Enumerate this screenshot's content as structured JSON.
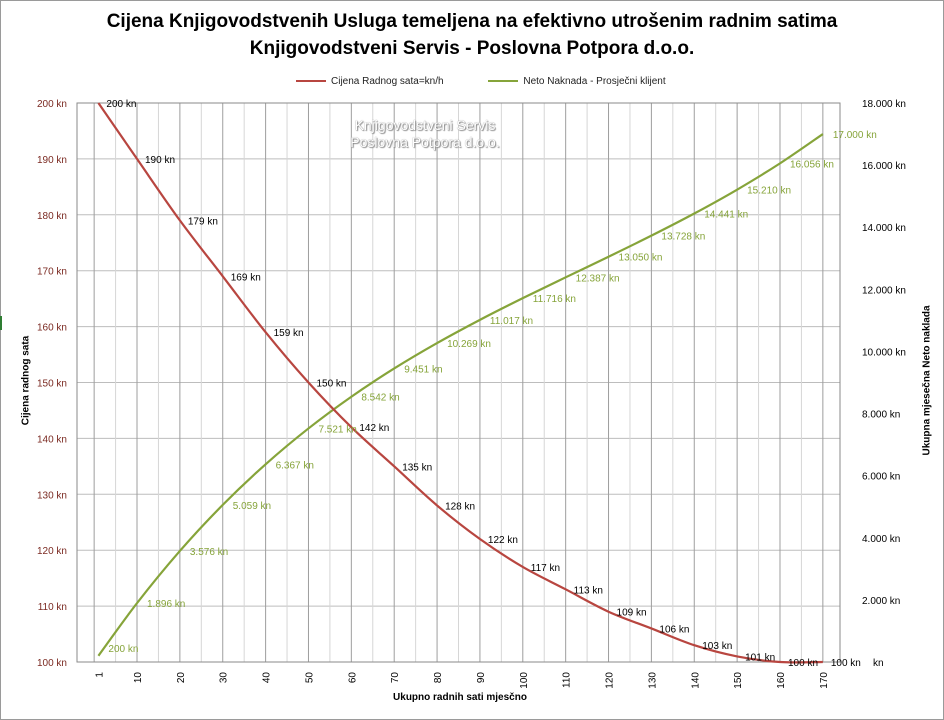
{
  "title_line1": "Cijena Knjigovodstvenih Usluga temeljena na efektivno utrošenim radnim satima",
  "title_line2": "Knjigovodstveni Servis - Poslovna Potpora d.o.o.",
  "watermark_line1": "Knjigovodstveni Servis",
  "watermark_line2": "Poslovna Potpora d.o.o.",
  "colors": {
    "price": "#b84640",
    "net": "#86a43a",
    "left_axis_text": "#7b2a22",
    "grid": "#bdbdbd"
  },
  "chart_data": {
    "type": "line",
    "xlabel": "Ukupno radnih sati mjesčno",
    "ylabel_left": "Cijena radnog sata",
    "ylabel_right": "Ukupna mjesečna Neto naklada",
    "ylim_left": [
      100,
      200
    ],
    "ylim_right": [
      0,
      18000
    ],
    "xlim": [
      -4,
      174
    ],
    "x_ticks": [
      1,
      10,
      20,
      30,
      40,
      50,
      60,
      70,
      80,
      90,
      100,
      110,
      120,
      130,
      140,
      150,
      160,
      170
    ],
    "x_tick_labels": [
      "1",
      "10",
      "20",
      "30",
      "40",
      "50",
      "60",
      "70",
      "80",
      "90",
      "100",
      "110",
      "120",
      "130",
      "140",
      "150",
      "160",
      "170"
    ],
    "y_left_ticks": [
      100,
      110,
      120,
      130,
      140,
      150,
      160,
      170,
      180,
      190,
      200
    ],
    "y_left_tick_labels": [
      "100 kn",
      "110 kn",
      "120 kn",
      "130 kn",
      "140 kn",
      "150 kn",
      "160 kn",
      "170 kn",
      "180 kn",
      "190 kn",
      "200 kn"
    ],
    "y_right_ticks": [
      0,
      2000,
      4000,
      6000,
      8000,
      10000,
      12000,
      14000,
      16000,
      18000
    ],
    "y_right_tick_labels": [
      "kn",
      "2.000 kn",
      "4.000 kn",
      "6.000 kn",
      "8.000 kn",
      "10.000 kn",
      "12.000 kn",
      "14.000 kn",
      "16.000 kn",
      "18.000 kn"
    ],
    "series": [
      {
        "name": "Cijena Radnog sata=kn/h",
        "axis": "left",
        "x": [
          1,
          10,
          20,
          30,
          40,
          50,
          60,
          70,
          80,
          90,
          100,
          110,
          120,
          130,
          140,
          150,
          160,
          170
        ],
        "values": [
          200,
          190,
          179,
          169,
          159,
          150,
          142,
          135,
          128,
          122,
          117,
          113,
          109,
          106,
          103,
          101,
          100,
          100
        ],
        "labels": [
          "200 kn",
          "190 kn",
          "179 kn",
          "169 kn",
          "159 kn",
          "150 kn",
          "142 kn",
          "135 kn",
          "128 kn",
          "122 kn",
          "117 kn",
          "113 kn",
          "109 kn",
          "106 kn",
          "103 kn",
          "101 kn",
          "100 kn",
          "100 kn"
        ]
      },
      {
        "name": "Neto Naknada - Prosječni klijent",
        "axis": "right",
        "x": [
          1,
          10,
          20,
          30,
          40,
          50,
          60,
          70,
          80,
          90,
          100,
          110,
          120,
          130,
          140,
          150,
          160,
          170
        ],
        "values": [
          200,
          1896,
          3576,
          5059,
          6367,
          7521,
          8542,
          9451,
          10269,
          11017,
          11716,
          12387,
          13050,
          13728,
          14441,
          15210,
          16056,
          17000
        ],
        "labels": [
          "200 kn",
          "1.896 kn",
          "3.576 kn",
          "5.059 kn",
          "6.367 kn",
          "7.521 kn",
          "8.542 kn",
          "9.451 kn",
          "10.269 kn",
          "11.017 kn",
          "11.716 kn",
          "12.387 kn",
          "13.050 kn",
          "13.728 kn",
          "14.441 kn",
          "15.210 kn",
          "16.056 kn",
          "17.000 kn"
        ]
      }
    ]
  }
}
